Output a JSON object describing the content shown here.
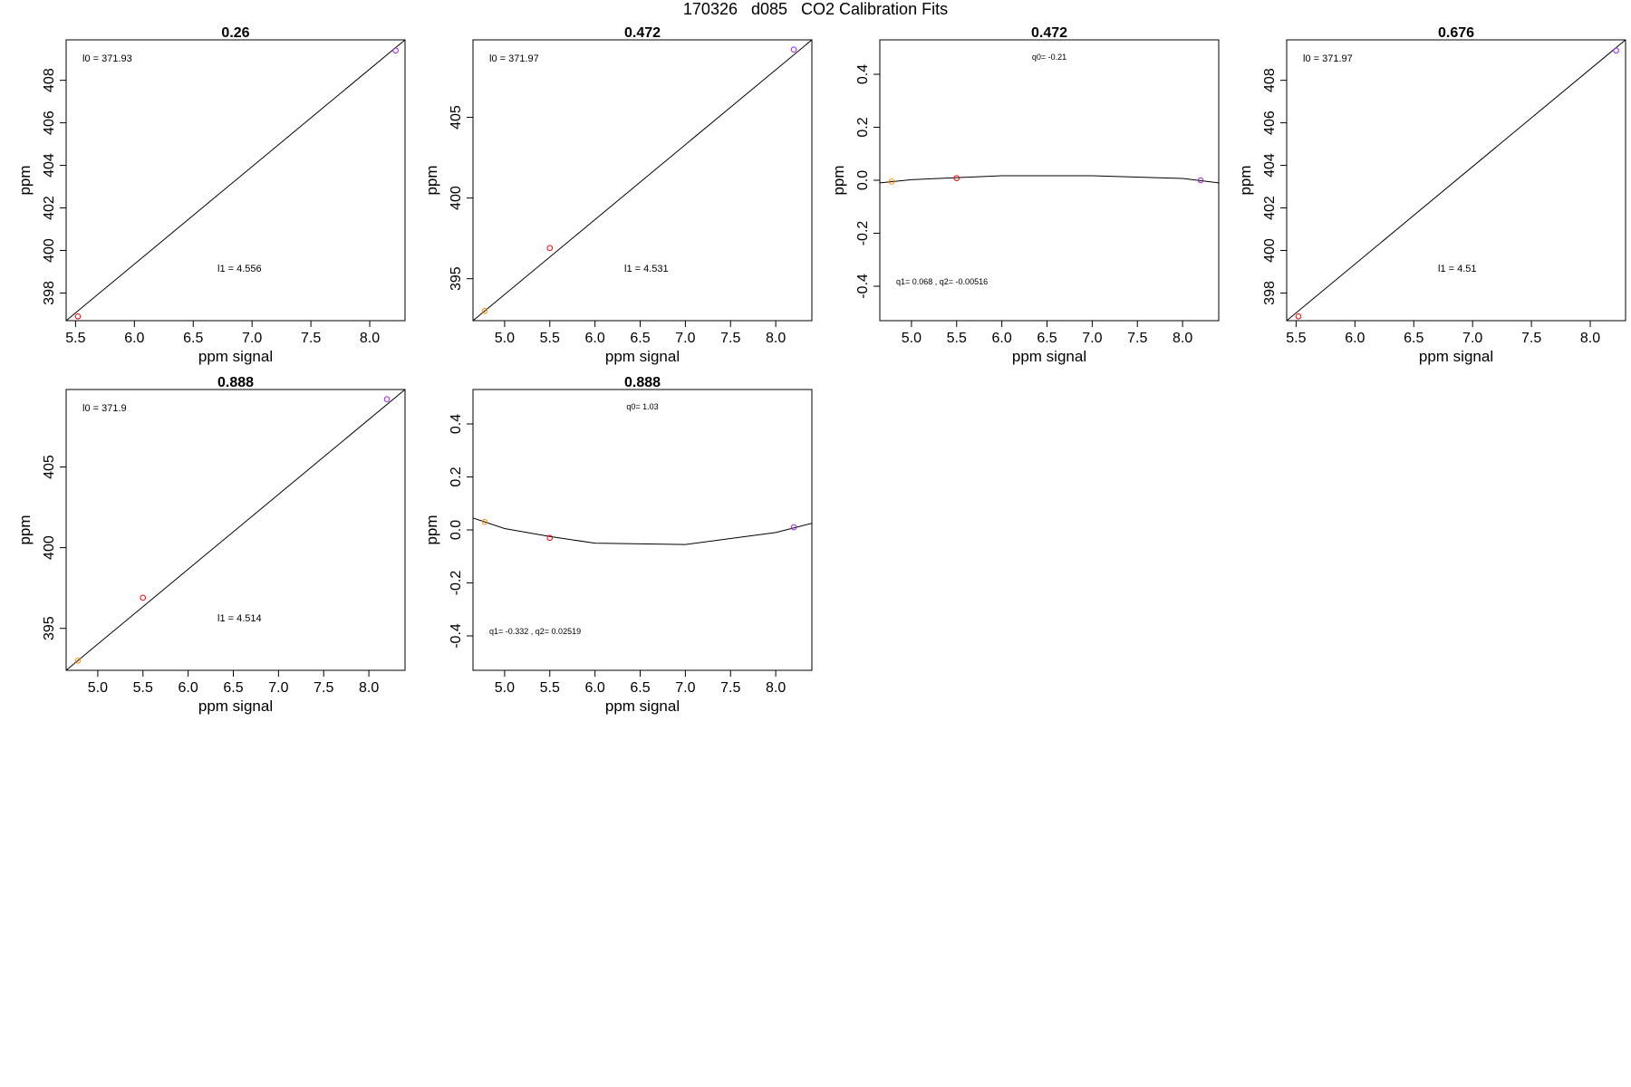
{
  "title": "170326   d085   CO2 Calibration Fits",
  "colors": {
    "axis": "#000000",
    "fit_line": "#000000",
    "pt_low": "#ff8c00",
    "pt_mid": "#ff0000",
    "pt_high": "#a020f0"
  },
  "chart_data": [
    {
      "type": "scatter",
      "title": "0.26",
      "xlabel": "ppm signal",
      "ylabel": "ppm",
      "xlim": [
        5.42,
        8.3
      ],
      "ylim": [
        396.7,
        409.9
      ],
      "xticks": [
        "5.5",
        "6.0",
        "6.5",
        "7.0",
        "7.5",
        "8.0"
      ],
      "yticks": [
        "398",
        "400",
        "402",
        "404",
        "406",
        "408"
      ],
      "points": [
        {
          "x": 5.52,
          "y": 396.9,
          "color": "#ff0000"
        },
        {
          "x": 8.22,
          "y": 409.4,
          "color": "#a020f0"
        }
      ],
      "fit_line": [
        [
          5.42,
          396.7
        ],
        [
          8.3,
          409.9
        ]
      ],
      "annotations": [
        {
          "text": "l0 =  371.93",
          "pos": "top-left"
        },
        {
          "text": "l1 =  4.556",
          "pos": "lower-middle"
        }
      ]
    },
    {
      "type": "scatter",
      "title": "0.472",
      "xlabel": "ppm signal",
      "ylabel": "ppm",
      "xlim": [
        4.65,
        8.4
      ],
      "ylim": [
        392.4,
        409.8
      ],
      "xticks": [
        "5.0",
        "5.5",
        "6.0",
        "6.5",
        "7.0",
        "7.5",
        "8.0"
      ],
      "yticks": [
        "395",
        "400",
        "405"
      ],
      "points": [
        {
          "x": 4.78,
          "y": 393.0,
          "color": "#ff8c00"
        },
        {
          "x": 5.5,
          "y": 396.9,
          "color": "#ff0000"
        },
        {
          "x": 8.2,
          "y": 409.2,
          "color": "#a020f0"
        }
      ],
      "fit_line": [
        [
          4.65,
          392.4
        ],
        [
          8.4,
          409.8
        ]
      ],
      "annotations": [
        {
          "text": "l0 =  371.97",
          "pos": "top-left"
        },
        {
          "text": "l1 =  4.531",
          "pos": "lower-middle"
        }
      ]
    },
    {
      "type": "line",
      "title": "0.472",
      "xlabel": "ppm signal",
      "ylabel": "ppm",
      "xlim": [
        4.65,
        8.4
      ],
      "ylim": [
        -0.53,
        0.53
      ],
      "xticks": [
        "5.0",
        "5.5",
        "6.0",
        "6.5",
        "7.0",
        "7.5",
        "8.0"
      ],
      "yticks": [
        "-0.4",
        "-0.2",
        "0.0",
        "0.2",
        "0.4"
      ],
      "points": [
        {
          "x": 4.78,
          "y": -0.005,
          "color": "#ff8c00"
        },
        {
          "x": 5.5,
          "y": 0.008,
          "color": "#ff0000"
        },
        {
          "x": 8.2,
          "y": 0.0,
          "color": "#a020f0"
        }
      ],
      "fit_line": [
        [
          4.65,
          -0.01
        ],
        [
          5.0,
          0.002
        ],
        [
          5.5,
          0.01
        ],
        [
          6.0,
          0.017
        ],
        [
          7.0,
          0.017
        ],
        [
          8.0,
          0.007
        ],
        [
          8.4,
          -0.01
        ]
      ],
      "annotations": [
        {
          "text": "q0= -0.21",
          "pos": "top-center"
        },
        {
          "text": "q1= 0.068 , q2= -0.00516",
          "pos": "bottom-left"
        }
      ]
    },
    {
      "type": "scatter",
      "title": "0.676",
      "xlabel": "ppm signal",
      "ylabel": "ppm",
      "xlim": [
        5.42,
        8.3
      ],
      "ylim": [
        396.7,
        409.9
      ],
      "xticks": [
        "5.5",
        "6.0",
        "6.5",
        "7.0",
        "7.5",
        "8.0"
      ],
      "yticks": [
        "398",
        "400",
        "402",
        "404",
        "406",
        "408"
      ],
      "points": [
        {
          "x": 5.52,
          "y": 396.9,
          "color": "#ff0000"
        },
        {
          "x": 8.22,
          "y": 409.4,
          "color": "#a020f0"
        }
      ],
      "fit_line": [
        [
          5.42,
          396.7
        ],
        [
          8.3,
          409.9
        ]
      ],
      "annotations": [
        {
          "text": "l0 =  371.97",
          "pos": "top-left"
        },
        {
          "text": "l1 =  4.51",
          "pos": "lower-middle"
        }
      ]
    },
    {
      "type": "scatter",
      "title": "0.888",
      "xlabel": "ppm signal",
      "ylabel": "ppm",
      "xlim": [
        4.65,
        8.4
      ],
      "ylim": [
        392.4,
        409.8
      ],
      "xticks": [
        "5.0",
        "5.5",
        "6.0",
        "6.5",
        "7.0",
        "7.5",
        "8.0"
      ],
      "yticks": [
        "395",
        "400",
        "405"
      ],
      "points": [
        {
          "x": 4.78,
          "y": 393.0,
          "color": "#ff8c00"
        },
        {
          "x": 5.5,
          "y": 396.9,
          "color": "#ff0000"
        },
        {
          "x": 8.2,
          "y": 409.2,
          "color": "#a020f0"
        }
      ],
      "fit_line": [
        [
          4.65,
          392.4
        ],
        [
          8.4,
          409.8
        ]
      ],
      "annotations": [
        {
          "text": "l0 =  371.9",
          "pos": "top-left"
        },
        {
          "text": "l1 =  4.514",
          "pos": "lower-middle"
        }
      ]
    },
    {
      "type": "line",
      "title": "0.888",
      "xlabel": "ppm signal",
      "ylabel": "ppm",
      "xlim": [
        4.65,
        8.4
      ],
      "ylim": [
        -0.53,
        0.53
      ],
      "xticks": [
        "5.0",
        "5.5",
        "6.0",
        "6.5",
        "7.0",
        "7.5",
        "8.0"
      ],
      "yticks": [
        "-0.4",
        "-0.2",
        "0.0",
        "0.2",
        "0.4"
      ],
      "points": [
        {
          "x": 4.78,
          "y": 0.03,
          "color": "#ff8c00"
        },
        {
          "x": 5.5,
          "y": -0.03,
          "color": "#ff0000"
        },
        {
          "x": 8.2,
          "y": 0.01,
          "color": "#a020f0"
        }
      ],
      "fit_line": [
        [
          4.65,
          0.045
        ],
        [
          5.0,
          0.005
        ],
        [
          5.5,
          -0.025
        ],
        [
          6.0,
          -0.05
        ],
        [
          7.0,
          -0.055
        ],
        [
          8.0,
          -0.01
        ],
        [
          8.4,
          0.025
        ]
      ],
      "annotations": [
        {
          "text": "q0= 1.03",
          "pos": "top-center"
        },
        {
          "text": "q1= -0.332 , q2= 0.02519",
          "pos": "bottom-left"
        }
      ]
    }
  ]
}
